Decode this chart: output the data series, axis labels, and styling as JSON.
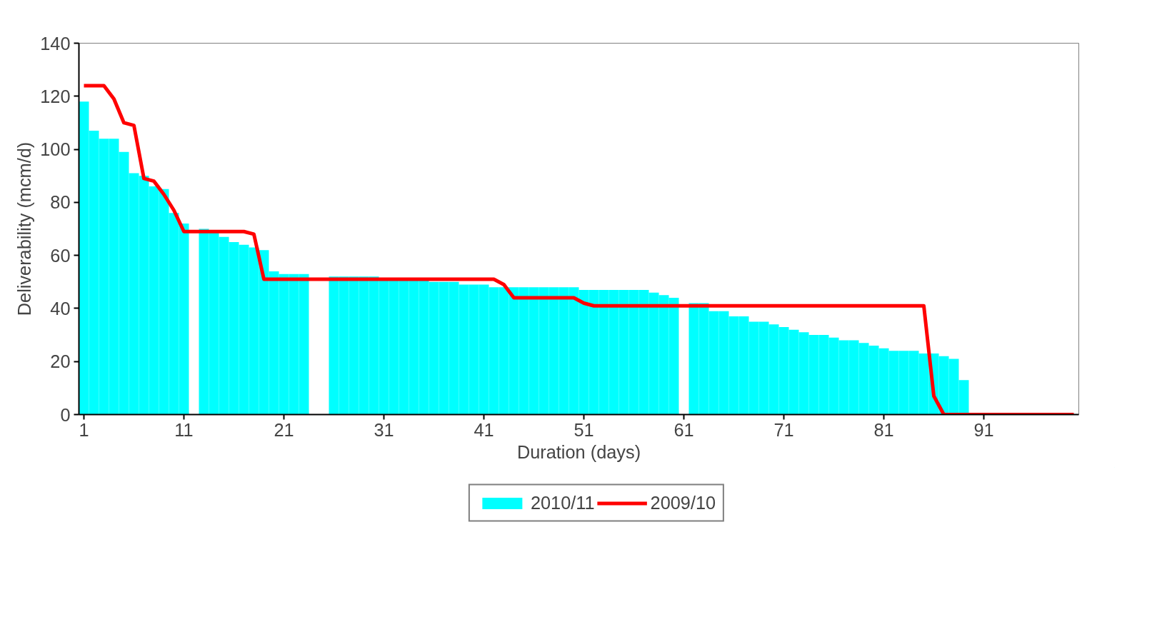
{
  "chart_data": {
    "type": "bar",
    "xlabel": "Duration (days)",
    "ylabel": "Deliverability (mcm/d)",
    "x": [
      1,
      2,
      3,
      4,
      5,
      6,
      7,
      8,
      9,
      10,
      11,
      12,
      13,
      14,
      15,
      16,
      17,
      18,
      19,
      20,
      21,
      22,
      23,
      24,
      25,
      26,
      27,
      28,
      29,
      30,
      31,
      32,
      33,
      34,
      35,
      36,
      37,
      38,
      39,
      40,
      41,
      42,
      43,
      44,
      45,
      46,
      47,
      48,
      49,
      50,
      51,
      52,
      53,
      54,
      55,
      56,
      57,
      58,
      59,
      60,
      61,
      62,
      63,
      64,
      65,
      66,
      67,
      68,
      69,
      70,
      71,
      72,
      73,
      74,
      75,
      76,
      77,
      78,
      79,
      80,
      81,
      82,
      83,
      84,
      85,
      86,
      87,
      88,
      89,
      90,
      91,
      92,
      93,
      94,
      95,
      96,
      97,
      98,
      99,
      100
    ],
    "xlim": [
      0.5,
      100.5
    ],
    "xticks": [
      1,
      11,
      21,
      31,
      41,
      51,
      61,
      71,
      81,
      91
    ],
    "ylim": [
      0,
      140
    ],
    "yticks": [
      0,
      20,
      40,
      60,
      80,
      100,
      120,
      140
    ],
    "grid": false,
    "legend": "bottom",
    "series": [
      {
        "name": "2010/11",
        "color": "#00ffff",
        "values": [
          118,
          107,
          104,
          104,
          99,
          91,
          90,
          86,
          85,
          76,
          72,
          null,
          70,
          69,
          67,
          65,
          64,
          63,
          62,
          54,
          53,
          53,
          53,
          null,
          null,
          52,
          52,
          52,
          52,
          52,
          51,
          51,
          51,
          51,
          51,
          50,
          50,
          50,
          49,
          49,
          49,
          48,
          48,
          48,
          48,
          48,
          48,
          48,
          48,
          48,
          47,
          47,
          47,
          47,
          47,
          47,
          47,
          46,
          45,
          44,
          null,
          42,
          42,
          39,
          39,
          37,
          37,
          35,
          35,
          34,
          33,
          32,
          31,
          30,
          30,
          29,
          28,
          28,
          27,
          26,
          25,
          24,
          24,
          24,
          23,
          23,
          22,
          21,
          13,
          0,
          0,
          0,
          0,
          0,
          0,
          0,
          0,
          0,
          0,
          0
        ]
      },
      {
        "name": "2009/10",
        "type": "line",
        "color": "#ff0000",
        "line_style": "solid",
        "values": [
          124,
          124,
          124,
          119,
          110,
          109,
          89,
          88,
          83,
          77,
          69,
          69,
          69,
          69,
          69,
          69,
          69,
          68,
          51,
          51,
          51,
          51,
          51,
          51,
          51,
          51,
          51,
          51,
          51,
          51,
          51,
          51,
          51,
          51,
          51,
          51,
          51,
          51,
          51,
          51,
          51,
          51,
          49,
          44,
          44,
          44,
          44,
          44,
          44,
          44,
          42,
          41,
          41,
          41,
          41,
          41,
          41,
          41,
          41,
          41,
          41,
          41,
          41,
          41,
          41,
          41,
          41,
          41,
          41,
          41,
          41,
          41,
          41,
          41,
          41,
          41,
          41,
          41,
          41,
          41,
          41,
          41,
          41,
          41,
          41,
          7,
          0,
          0,
          0,
          0,
          0,
          0,
          0,
          0,
          0,
          0,
          0,
          0,
          0,
          0
        ]
      }
    ]
  }
}
